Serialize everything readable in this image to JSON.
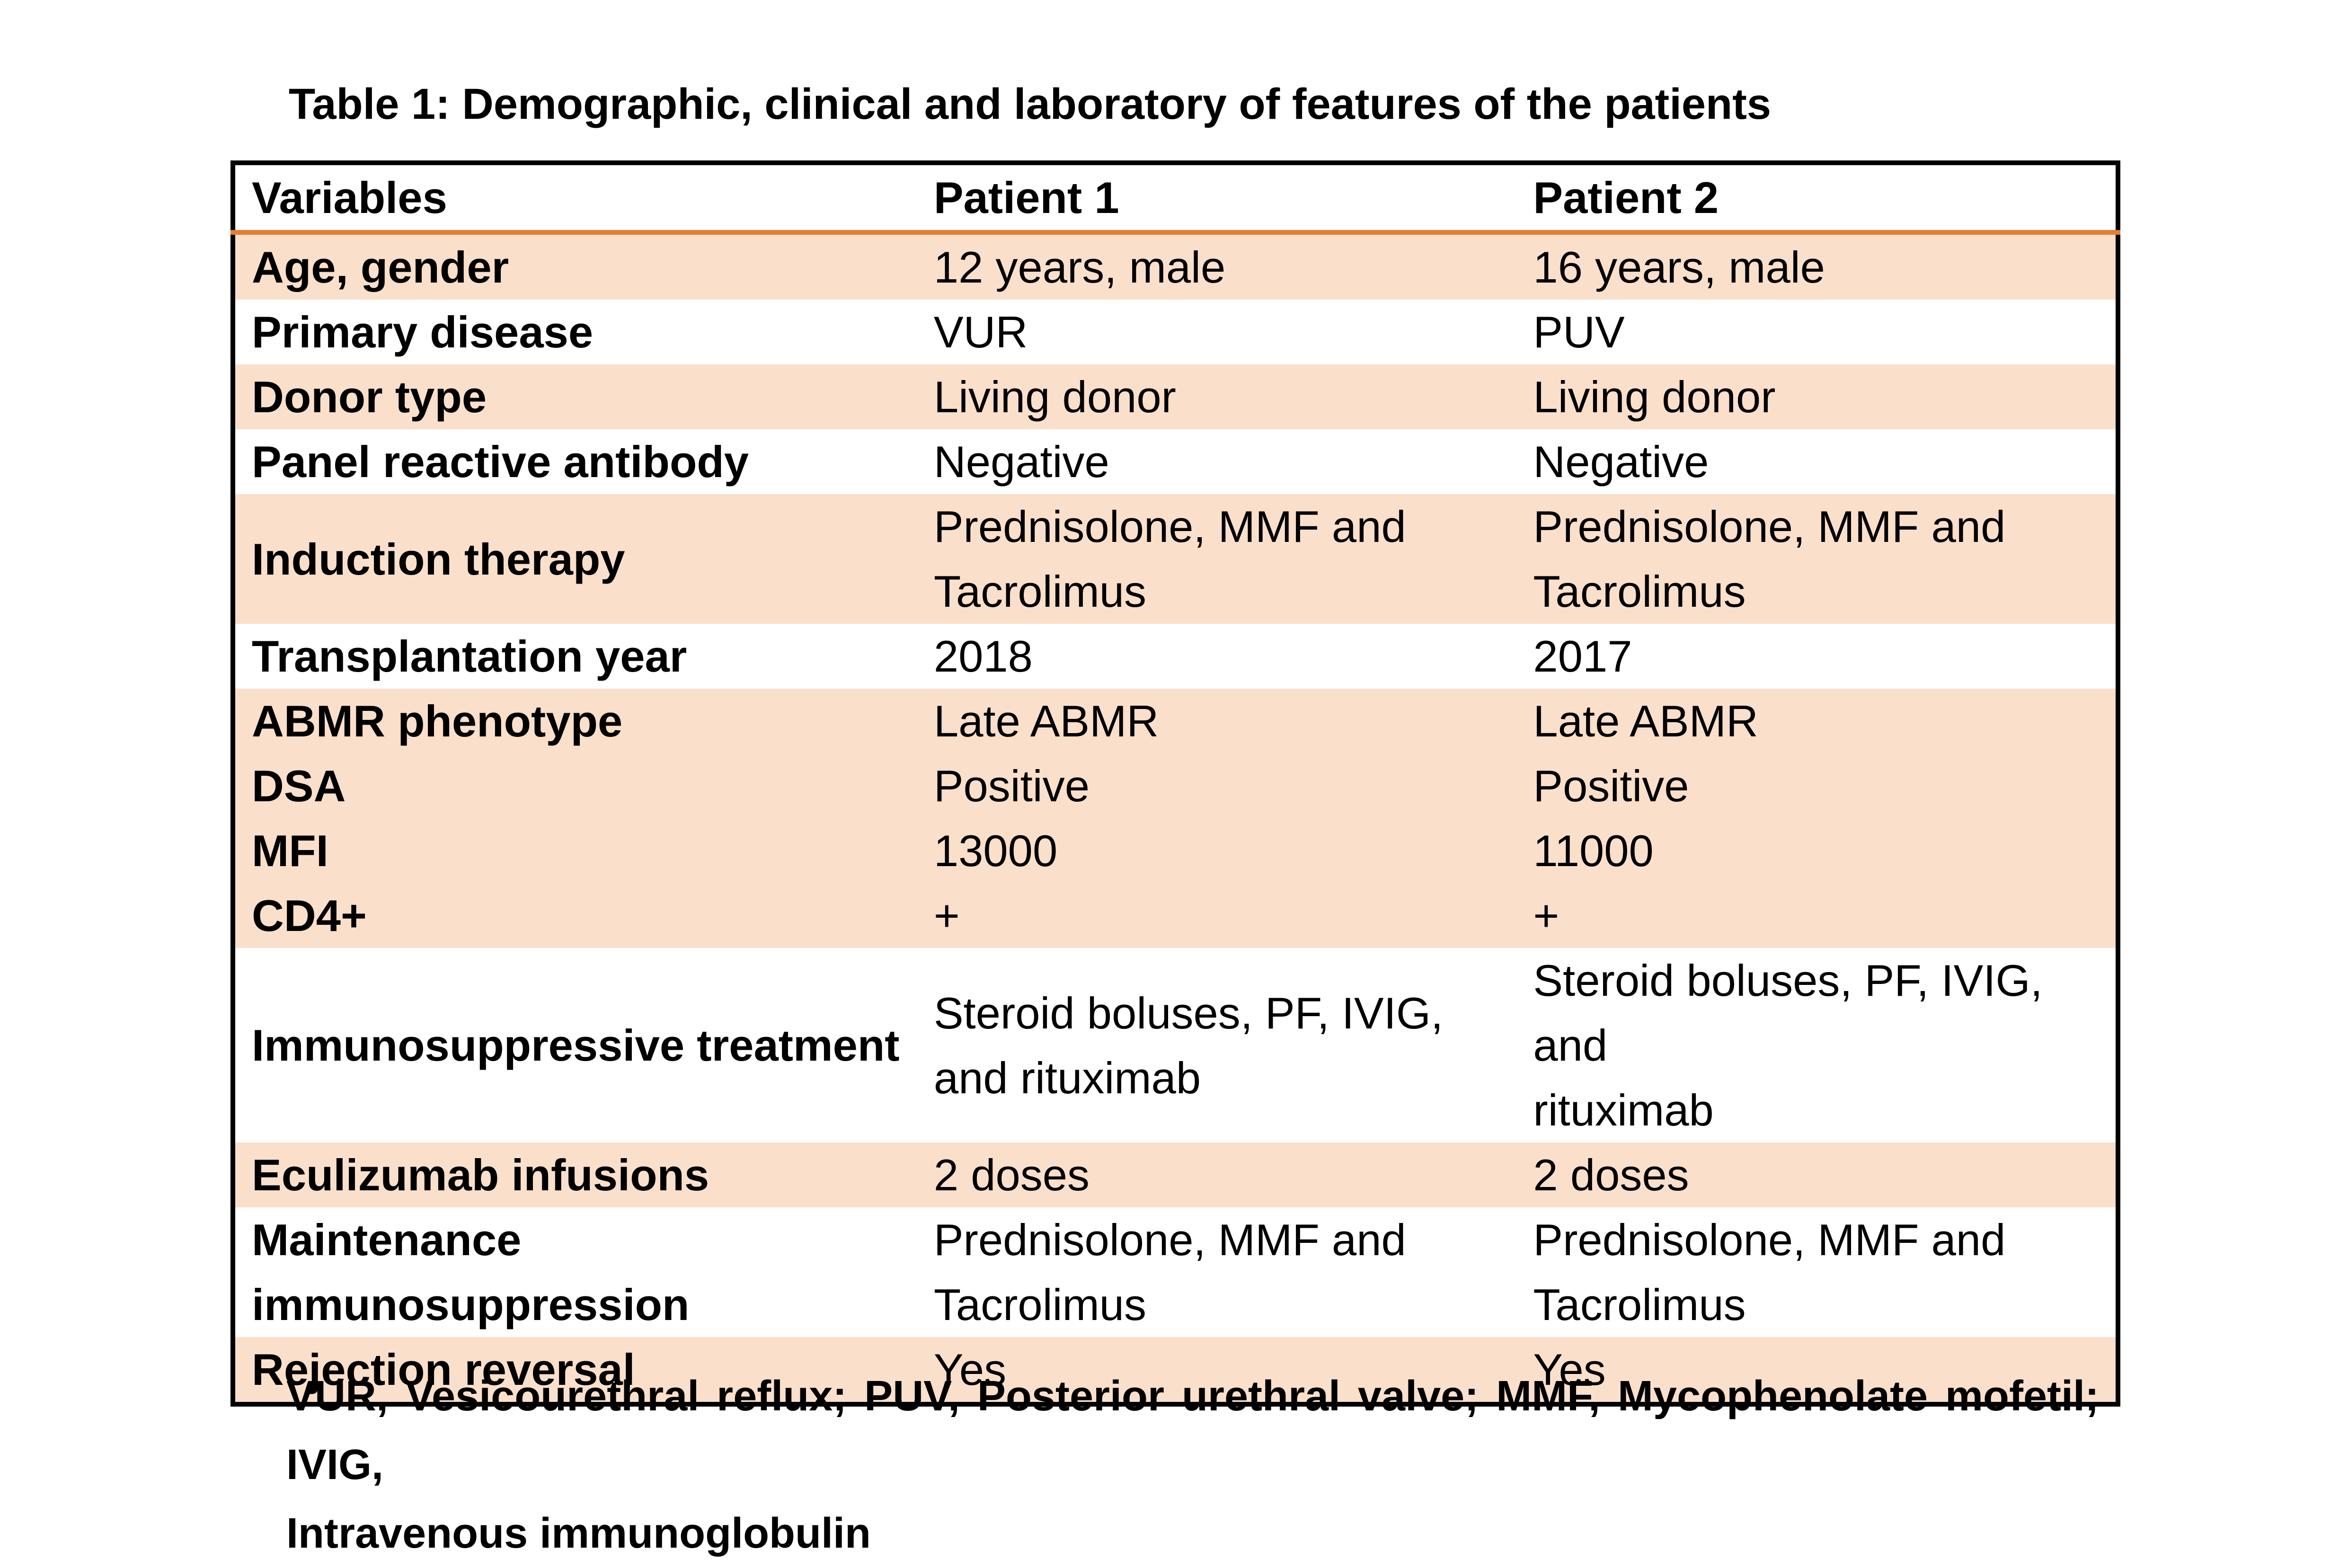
{
  "title": "Table 1: Demographic, clinical and laboratory of features of the patients",
  "colors": {
    "accent_orange": "#e87c30",
    "row_shade": "#fadfcb",
    "border_black": "#000000"
  },
  "table": {
    "columns": [
      "Variables",
      "Patient 1",
      "Patient 2"
    ],
    "rows": [
      {
        "label": "Age, gender",
        "patient1": "12 years, male",
        "patient2": "16 years, male"
      },
      {
        "label": "Primary disease",
        "patient1": "VUR",
        "patient2": "PUV"
      },
      {
        "label": "Donor type",
        "patient1": "Living donor",
        "patient2": "Living donor"
      },
      {
        "label": "Panel reactive antibody",
        "patient1": "Negative",
        "patient2": "Negative"
      },
      {
        "label": "Induction therapy",
        "patient1": "Prednisolone, MMF and\nTacrolimus",
        "patient2": "Prednisolone, MMF and\nTacrolimus"
      },
      {
        "label": "Transplantation year",
        "patient1": "2018",
        "patient2": "2017"
      },
      {
        "label": "ABMR phenotype\nDSA\nMFI\nCD4+",
        "patient1": "Late ABMR\nPositive\n13000\n+",
        "patient2": "Late ABMR\nPositive\n11000\n+"
      },
      {
        "label": "Immunosuppressive treatment",
        "patient1": "Steroid boluses, PF, IVIG,\nand rituximab",
        "patient2": "Steroid boluses, PF, IVIG, and\nrituximab"
      },
      {
        "label": "Eculizumab infusions",
        "patient1": "2 doses",
        "patient2": "2 doses"
      },
      {
        "label": "Maintenance\nimmunosuppression",
        "patient1": "Prednisolone, MMF and\nTacrolimus",
        "patient2": "Prednisolone, MMF and\nTacrolimus"
      },
      {
        "label": "Rejection reversal",
        "patient1": "Yes",
        "patient2": "Yes"
      }
    ]
  },
  "footnote": {
    "line1": "VUR, Vesicourethral reflux; PUV, Posterior urethral valve; MMF, Mycophenolate mofetil; IVIG,",
    "line2": "Intravenous immunoglobulin"
  }
}
